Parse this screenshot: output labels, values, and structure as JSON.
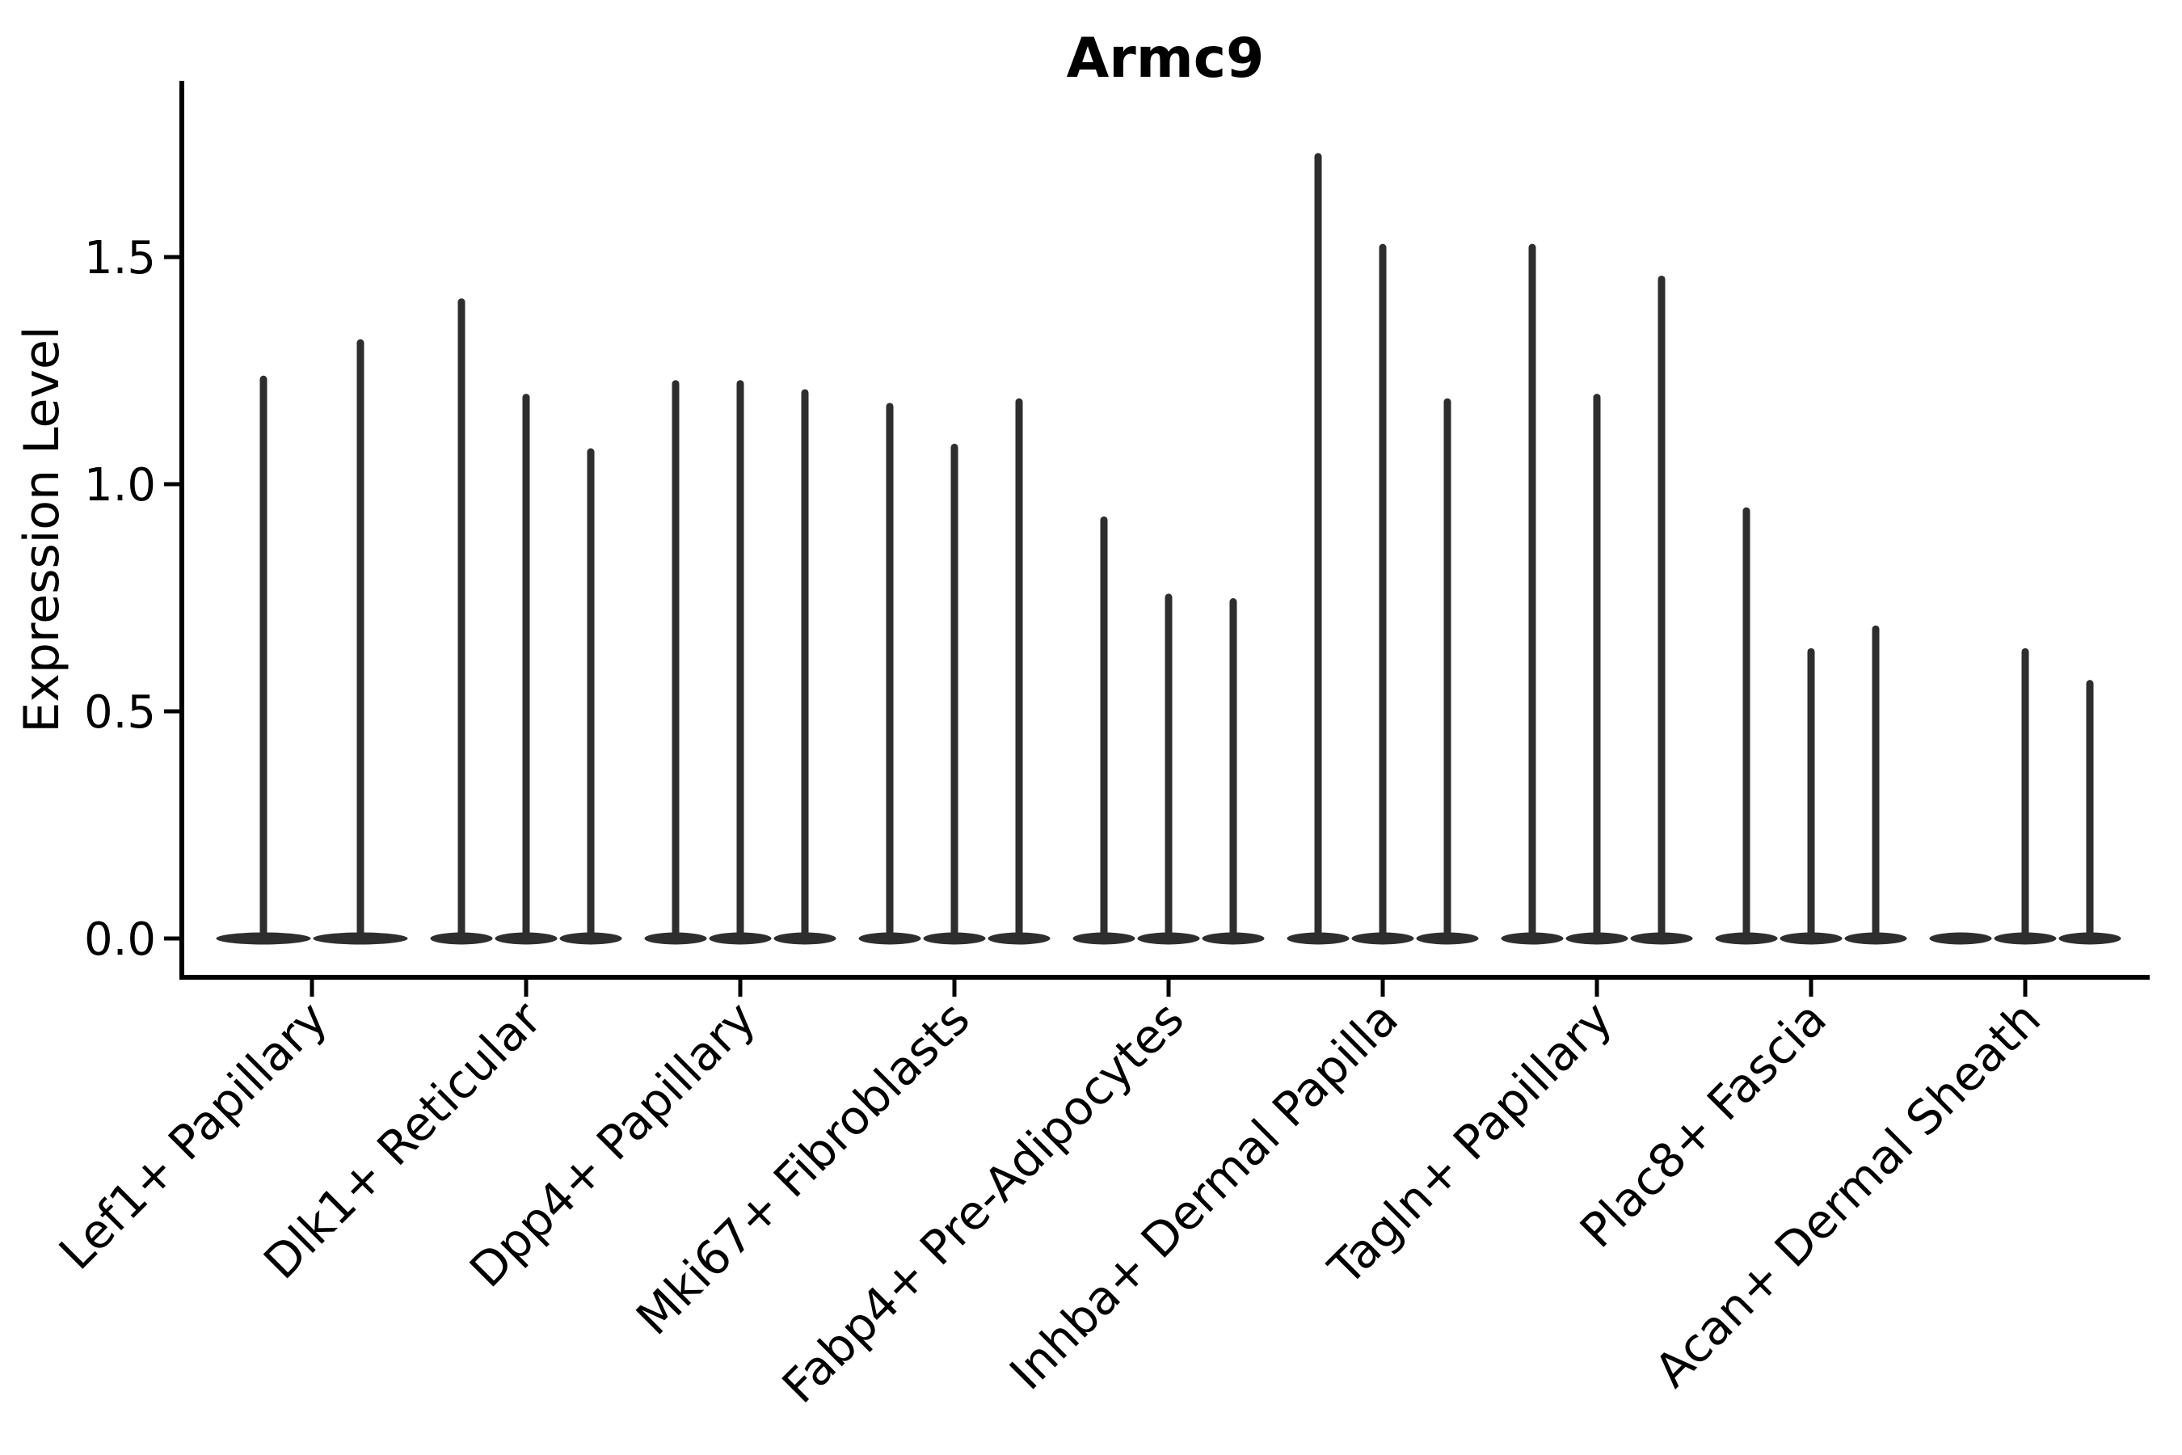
{
  "chart_data": {
    "type": "violin",
    "title": "Armc9",
    "xlabel": "",
    "ylabel": "Expression Level",
    "ytick_labels": [
      "0.0",
      "0.5",
      "1.0",
      "1.5"
    ],
    "ytick_values": [
      0.0,
      0.5,
      1.0,
      1.5
    ],
    "ylim": [
      -0.09,
      1.89
    ],
    "grid": false,
    "legend": "none",
    "categories": [
      "Lef1+ Papillary",
      "Dlk1+ Reticular",
      "Dpp4+ Papillary",
      "Mki67+ Fibroblasts",
      "Fabp4+ Pre-Adipocytes",
      "Inhba+ Dermal Papilla",
      "Tagln+ Papillary",
      "Plac8+ Fascia",
      "Acan+ Dermal Sheath"
    ],
    "groups": [
      {
        "category": "Lef1+ Papillary",
        "violin_peaks": [
          1.24,
          1.32
        ]
      },
      {
        "category": "Dlk1+ Reticular",
        "violin_peaks": [
          1.41,
          1.2,
          1.08
        ]
      },
      {
        "category": "Dpp4+ Papillary",
        "violin_peaks": [
          1.23,
          1.23,
          1.21
        ]
      },
      {
        "category": "Mki67+ Fibroblasts",
        "violin_peaks": [
          1.18,
          1.09,
          1.19
        ]
      },
      {
        "category": "Fabp4+ Pre-Adipocytes",
        "violin_peaks": [
          0.93,
          0.76,
          0.75
        ]
      },
      {
        "category": "Inhba+ Dermal Papilla",
        "violin_peaks": [
          1.73,
          1.53,
          1.19
        ]
      },
      {
        "category": "Tagln+ Papillary",
        "violin_peaks": [
          1.53,
          1.2,
          1.46
        ]
      },
      {
        "category": "Plac8+ Fascia",
        "violin_peaks": [
          0.95,
          0.64,
          0.69
        ]
      },
      {
        "category": "Acan+ Dermal Sheath",
        "violin_peaks": [
          0.0,
          0.64,
          0.57
        ]
      }
    ],
    "colors": {
      "violin": "#2e2e2e",
      "axis": "#000000",
      "text": "#000000",
      "background": "#ffffff"
    }
  }
}
